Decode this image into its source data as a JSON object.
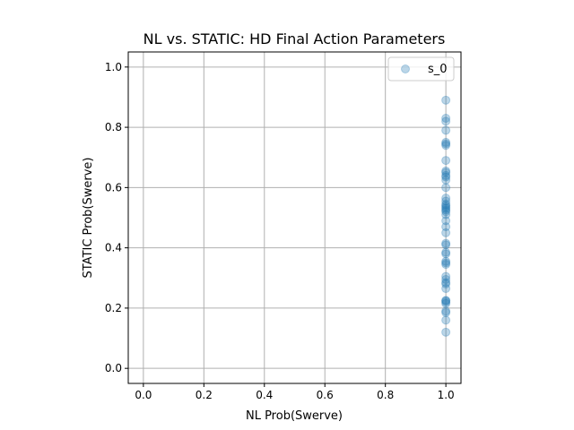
{
  "chart_data": {
    "type": "scatter",
    "title": "NL vs. STATIC: HD Final Action Parameters",
    "xlabel": "NL Prob(Swerve)",
    "ylabel": "STATIC Prob(Swerve)",
    "xlim": [
      -0.05,
      1.05
    ],
    "ylim": [
      -0.05,
      1.05
    ],
    "xticks": [
      0.0,
      0.2,
      0.4,
      0.6,
      0.8,
      1.0
    ],
    "yticks": [
      0.0,
      0.2,
      0.4,
      0.6,
      0.8,
      1.0
    ],
    "xtick_labels": [
      "0.0",
      "0.2",
      "0.4",
      "0.6",
      "0.8",
      "1.0"
    ],
    "ytick_labels": [
      "0.0",
      "0.2",
      "0.4",
      "0.6",
      "0.8",
      "1.0"
    ],
    "grid": true,
    "legend_position": "top-right",
    "series": [
      {
        "name": "s_0",
        "color": "#1f77b4",
        "alpha": 0.3,
        "x": [
          1.0,
          1.0,
          1.0,
          1.0,
          1.0,
          1.0,
          1.0,
          1.0,
          1.0,
          1.0,
          1.0,
          1.0,
          1.0,
          1.0,
          1.0,
          1.0,
          1.0,
          1.0,
          1.0,
          1.0,
          1.0,
          1.0,
          1.0,
          1.0,
          1.0,
          1.0,
          1.0,
          1.0,
          1.0,
          1.0,
          1.0,
          1.0,
          1.0,
          1.0,
          1.0,
          1.0,
          1.0,
          1.0,
          1.0,
          1.0,
          1.0,
          1.0,
          1.0,
          1.0,
          1.0,
          1.0
        ],
        "y": [
          0.89,
          0.83,
          0.82,
          0.79,
          0.75,
          0.745,
          0.74,
          0.69,
          0.655,
          0.65,
          0.64,
          0.635,
          0.625,
          0.6,
          0.565,
          0.555,
          0.545,
          0.54,
          0.535,
          0.53,
          0.525,
          0.52,
          0.51,
          0.49,
          0.47,
          0.45,
          0.415,
          0.41,
          0.385,
          0.38,
          0.355,
          0.35,
          0.345,
          0.305,
          0.295,
          0.285,
          0.28,
          0.265,
          0.225,
          0.22,
          0.215,
          0.19,
          0.185,
          0.16,
          0.12,
          0.225
        ]
      }
    ]
  }
}
